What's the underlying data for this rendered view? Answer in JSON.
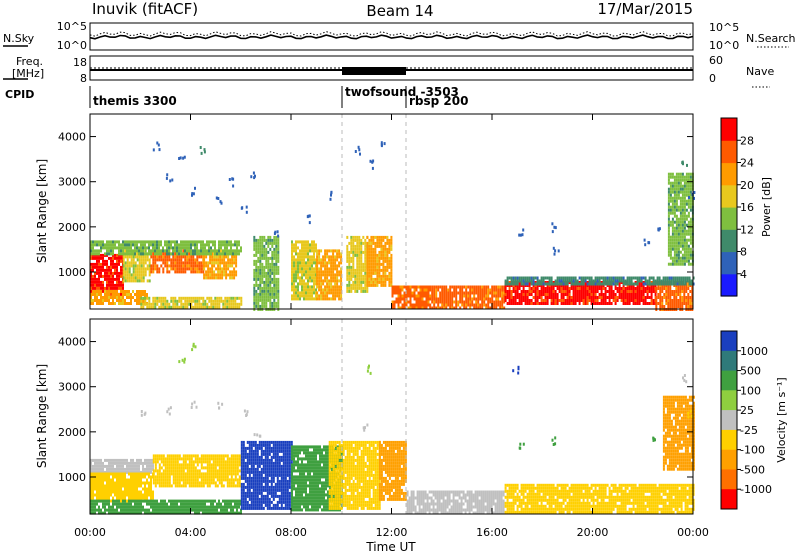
{
  "header": {
    "station": "Inuvik (fitACF)",
    "beam": "Beam 14",
    "date": "17/Mar/2015"
  },
  "summary_panels": {
    "nsky_label": "N.Sky",
    "nsearch_label": "N.Search",
    "freq_label_line1": "Freq.",
    "freq_label_line2": "[MHz]",
    "nave_label": "Nave",
    "cpid_label": "CPID",
    "noise_left_ticks": [
      "10^5",
      "10^0"
    ],
    "noise_right_ticks": [
      "10^5",
      "10^0"
    ],
    "freq_left_ticks": [
      "18",
      "8"
    ],
    "freq_right_ticks": [
      "60",
      "0"
    ]
  },
  "cpid_segments": [
    {
      "label": "themis 3300",
      "start_hour": 0.0
    },
    {
      "label": "twofsound -3503",
      "start_hour": 10.0
    },
    {
      "label": "rbsp 200",
      "start_hour": 12.6
    }
  ],
  "axes": {
    "xlabel": "Time UT",
    "x_ticks": [
      "00:00",
      "04:00",
      "08:00",
      "12:00",
      "16:00",
      "20:00",
      "00:00"
    ],
    "ylabel": "Slant Range [km]",
    "y_ticks": [
      "1000",
      "2000",
      "3000",
      "4000"
    ]
  },
  "colorbars": {
    "power": {
      "title": "Power [dB]",
      "ticks": [
        "4",
        "8",
        "12",
        "16",
        "20",
        "24",
        "28"
      ],
      "colors": [
        "#1a1aff",
        "#2f62b8",
        "#3f8a6a",
        "#7fbf3f",
        "#e8c81e",
        "#ff9b00",
        "#ff5a00",
        "#ff0000"
      ]
    },
    "velocity": {
      "title": "Velocity [m s⁻¹]",
      "ticks": [
        "1000",
        "500",
        "100",
        "25",
        "-25",
        "-100",
        "-500",
        "-1000"
      ],
      "colors": [
        "#1a3fbf",
        "#2f7a7a",
        "#3fa040",
        "#8fcf3f",
        "#c0c0c0",
        "#ffd000",
        "#ffa000",
        "#ff7000",
        "#ff0000"
      ]
    }
  },
  "chart_data": [
    {
      "type": "heatmap",
      "title": "Power [dB]",
      "xlabel": "Time UT",
      "ylabel": "Slant Range [km]",
      "xlim": [
        0,
        24
      ],
      "ylim": [
        180,
        4500
      ],
      "clim": [
        0,
        30
      ],
      "patches": [
        {
          "t0": 0.0,
          "t1": 1.3,
          "r0": 500,
          "r1": 1400,
          "level": 28
        },
        {
          "t0": 0.0,
          "t1": 2.3,
          "r0": 300,
          "r1": 600,
          "level": 20
        },
        {
          "t0": 1.3,
          "t1": 2.4,
          "r0": 800,
          "r1": 1500,
          "level": 16
        },
        {
          "t0": 2.4,
          "t1": 4.5,
          "r0": 1000,
          "r1": 1500,
          "level": 24
        },
        {
          "t0": 4.5,
          "t1": 5.8,
          "r0": 900,
          "r1": 1500,
          "level": 20
        },
        {
          "t0": 0.0,
          "t1": 6.0,
          "r0": 1400,
          "r1": 1700,
          "level": 12
        },
        {
          "t0": 2.0,
          "t1": 6.0,
          "r0": 200,
          "r1": 450,
          "level": 16
        },
        {
          "t0": 6.5,
          "t1": 7.5,
          "r0": 200,
          "r1": 1800,
          "level": 12
        },
        {
          "t0": 8.0,
          "t1": 9.0,
          "r0": 400,
          "r1": 1700,
          "level": 16
        },
        {
          "t0": 9.0,
          "t1": 10.0,
          "r0": 400,
          "r1": 1500,
          "level": 20
        },
        {
          "t0": 10.2,
          "t1": 11.0,
          "r0": 600,
          "r1": 1800,
          "level": 16
        },
        {
          "t0": 11.0,
          "t1": 12.0,
          "r0": 700,
          "r1": 1800,
          "level": 20
        },
        {
          "t0": 12.0,
          "t1": 13.5,
          "r0": 200,
          "r1": 700,
          "level": 24
        },
        {
          "t0": 13.5,
          "t1": 16.5,
          "r0": 200,
          "r1": 700,
          "level": 24
        },
        {
          "t0": 16.5,
          "t1": 22.5,
          "r0": 300,
          "r1": 800,
          "level": 28
        },
        {
          "t0": 22.5,
          "t1": 24.0,
          "r0": 200,
          "r1": 800,
          "level": 24
        },
        {
          "t0": 16.5,
          "t1": 24.0,
          "r0": 750,
          "r1": 900,
          "level": 8
        },
        {
          "t0": 23.0,
          "t1": 24.0,
          "r0": 1200,
          "r1": 3200,
          "level": 12
        }
      ],
      "speckles": [
        {
          "t": 2.5,
          "r": 3900,
          "level": 4
        },
        {
          "t": 3.0,
          "r": 3200,
          "level": 4
        },
        {
          "t": 3.5,
          "r": 3600,
          "level": 4
        },
        {
          "t": 4.0,
          "r": 2900,
          "level": 4
        },
        {
          "t": 4.3,
          "r": 3800,
          "level": 8
        },
        {
          "t": 5.5,
          "r": 3100,
          "level": 4
        },
        {
          "t": 6.0,
          "r": 2500,
          "level": 4
        },
        {
          "t": 6.3,
          "r": 3300,
          "level": 4
        },
        {
          "t": 5.0,
          "r": 2700,
          "level": 4
        },
        {
          "t": 7.3,
          "r": 2000,
          "level": 4
        },
        {
          "t": 8.5,
          "r": 2300,
          "level": 4
        },
        {
          "t": 9.5,
          "r": 2800,
          "level": 4
        },
        {
          "t": 10.5,
          "r": 3800,
          "level": 4
        },
        {
          "t": 11.0,
          "r": 3500,
          "level": 4
        },
        {
          "t": 11.5,
          "r": 4000,
          "level": 4
        },
        {
          "t": 17.0,
          "r": 2000,
          "level": 4
        },
        {
          "t": 18.3,
          "r": 2100,
          "level": 4
        },
        {
          "t": 18.4,
          "r": 1600,
          "level": 4
        },
        {
          "t": 22.0,
          "r": 1800,
          "level": 4
        },
        {
          "t": 22.5,
          "r": 2000,
          "level": 4
        },
        {
          "t": 23.5,
          "r": 3500,
          "level": 8
        },
        {
          "t": 23.8,
          "r": 2800,
          "level": 4
        }
      ]
    },
    {
      "type": "heatmap",
      "title": "Velocity [m s⁻¹]",
      "xlabel": "Time UT",
      "ylabel": "Slant Range [km]",
      "xlim": [
        0,
        24
      ],
      "ylim": [
        180,
        4500
      ],
      "clim": [
        -1000,
        1000
      ],
      "patches": [
        {
          "t0": 0.0,
          "t1": 2.5,
          "r0": 1100,
          "r1": 1400,
          "level": 0
        },
        {
          "t0": 0.0,
          "t1": 2.5,
          "r0": 500,
          "r1": 1100,
          "level": -100
        },
        {
          "t0": 2.5,
          "t1": 6.0,
          "r0": 800,
          "r1": 1500,
          "level": -100
        },
        {
          "t0": 0.0,
          "t1": 6.0,
          "r0": 200,
          "r1": 500,
          "level": 100
        },
        {
          "t0": 6.0,
          "t1": 8.0,
          "r0": 300,
          "r1": 1800,
          "level": 1000
        },
        {
          "t0": 8.0,
          "t1": 10.0,
          "r0": 300,
          "r1": 1700,
          "level": 100
        },
        {
          "t0": 9.5,
          "t1": 11.5,
          "r0": 300,
          "r1": 1800,
          "level": -100
        },
        {
          "t0": 11.5,
          "t1": 12.6,
          "r0": 500,
          "r1": 1800,
          "level": -500
        },
        {
          "t0": 12.6,
          "t1": 16.5,
          "r0": 200,
          "r1": 700,
          "level": 0
        },
        {
          "t0": 16.5,
          "t1": 24.0,
          "r0": 200,
          "r1": 850,
          "level": -100
        },
        {
          "t0": 22.8,
          "t1": 24.0,
          "r0": 1200,
          "r1": 2800,
          "level": -500
        }
      ],
      "speckles": [
        {
          "t": 2.0,
          "r": 2500,
          "level": 0
        },
        {
          "t": 3.0,
          "r": 2600,
          "level": 0
        },
        {
          "t": 4.0,
          "r": 2700,
          "level": 0
        },
        {
          "t": 5.0,
          "r": 2700,
          "level": 0
        },
        {
          "t": 6.0,
          "r": 2500,
          "level": 0
        },
        {
          "t": 6.5,
          "r": 2000,
          "level": 0
        },
        {
          "t": 4.0,
          "r": 4000,
          "level": 25
        },
        {
          "t": 3.5,
          "r": 3700,
          "level": 25
        },
        {
          "t": 10.8,
          "r": 2200,
          "level": 0
        },
        {
          "t": 11.0,
          "r": 3500,
          "level": 25
        },
        {
          "t": 16.8,
          "r": 3500,
          "level": 1000
        },
        {
          "t": 17.0,
          "r": 1800,
          "level": 100
        },
        {
          "t": 18.3,
          "r": 1900,
          "level": 100
        },
        {
          "t": 22.3,
          "r": 1900,
          "level": 100
        },
        {
          "t": 23.5,
          "r": 3300,
          "level": 0
        },
        {
          "t": 23.7,
          "r": 2500,
          "level": -100
        }
      ]
    }
  ]
}
